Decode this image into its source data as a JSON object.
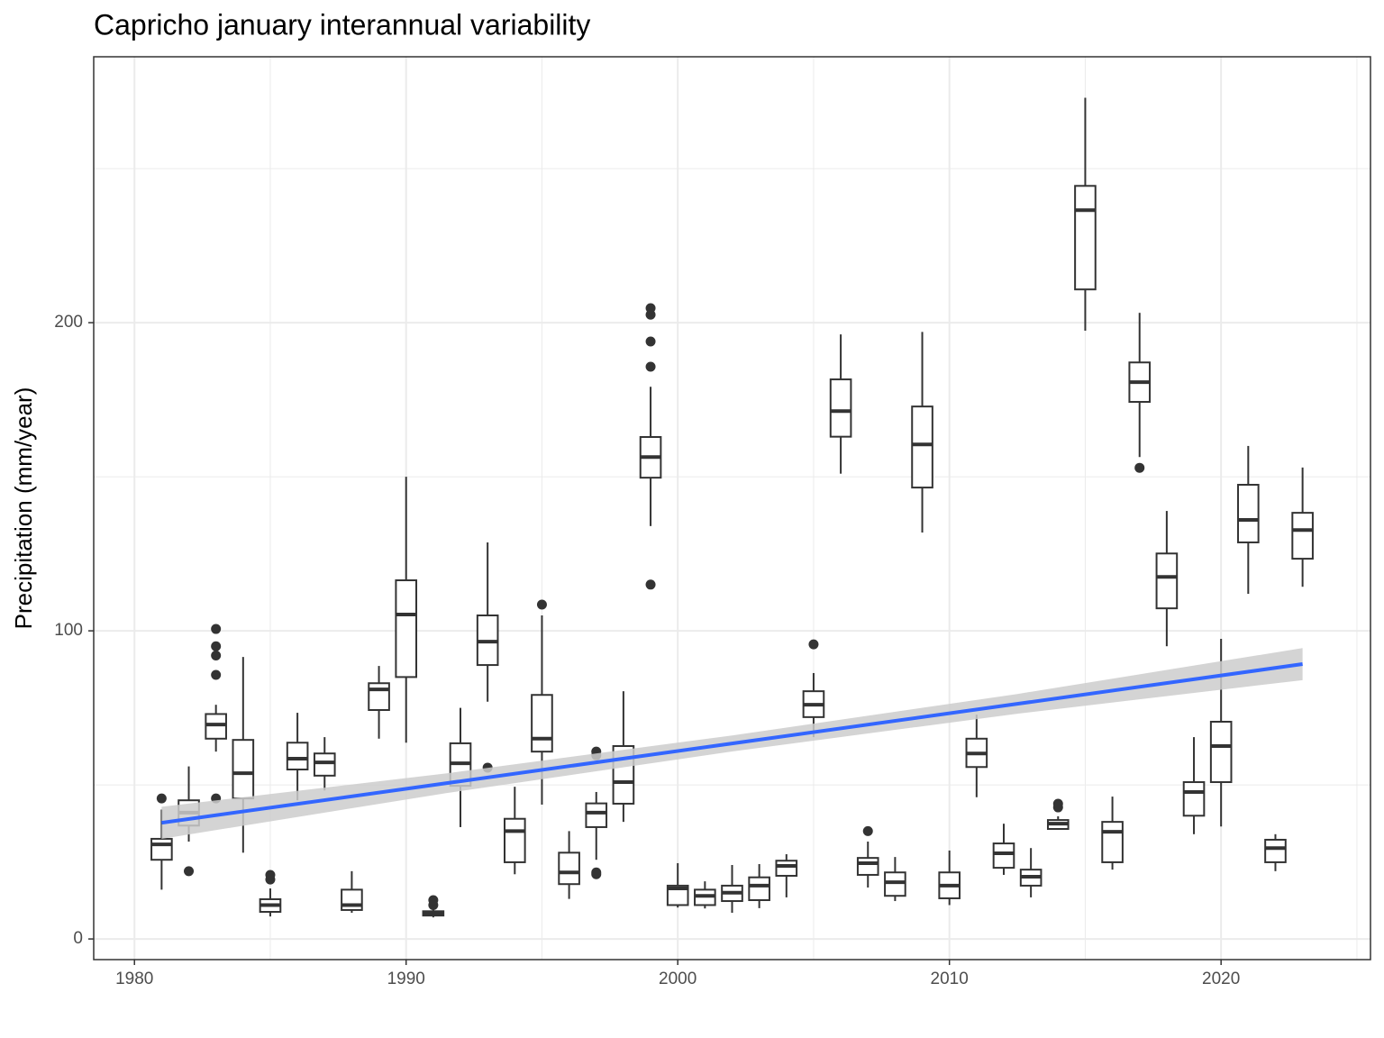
{
  "chart_data": {
    "type": "boxplot",
    "title": "Capricho january interannual variability",
    "y_label": "Precipitation (mm/year)",
    "xlim": [
      1978.5,
      2025.5
    ],
    "xticks": [
      1980,
      1990,
      2000,
      2010,
      2020
    ],
    "minor_xticks": [
      1985,
      1995,
      2005,
      2015,
      2025
    ],
    "ylim": [
      -6.7,
      286.3
    ],
    "yticks": [
      0,
      100,
      200
    ],
    "minor_yticks": [
      50,
      150,
      250
    ],
    "grid": true,
    "box_color": "#333333",
    "box_fill": "#ffffff",
    "boxes": [
      {
        "x": 1981,
        "whisker_low": 16,
        "q1": 25.7,
        "median": 30.7,
        "q3": 32.5,
        "whisker_high": 42,
        "outliers": [
          45.6
        ]
      },
      {
        "x": 1982,
        "whisker_low": 31.6,
        "q1": 36.8,
        "median": 41,
        "q3": 45,
        "whisker_high": 56,
        "outliers": [
          22
        ]
      },
      {
        "x": 1983,
        "whisker_low": 60.8,
        "q1": 65,
        "median": 69.6,
        "q3": 73,
        "whisker_high": 76,
        "outliers": [
          45.6,
          85.7,
          92,
          95,
          100.6
        ]
      },
      {
        "x": 1984,
        "whisker_low": 28,
        "q1": 45.6,
        "median": 53.8,
        "q3": 64.6,
        "whisker_high": 91.5,
        "outliers": []
      },
      {
        "x": 1985,
        "whisker_low": 7.3,
        "q1": 8.8,
        "median": 11,
        "q3": 12.9,
        "whisker_high": 16.4,
        "outliers": [
          19.3,
          20.8
        ]
      },
      {
        "x": 1986,
        "whisker_low": 45,
        "q1": 55,
        "median": 58.5,
        "q3": 63.7,
        "whisker_high": 73.4,
        "outliers": []
      },
      {
        "x": 1987,
        "whisker_low": 48.2,
        "q1": 53,
        "median": 57.3,
        "q3": 60.2,
        "whisker_high": 65.5,
        "outliers": []
      },
      {
        "x": 1988,
        "whisker_low": 8.5,
        "q1": 9.4,
        "median": 11,
        "q3": 16,
        "whisker_high": 22,
        "outliers": []
      },
      {
        "x": 1989,
        "whisker_low": 65,
        "q1": 74.3,
        "median": 81,
        "q3": 83,
        "whisker_high": 88.6,
        "outliers": []
      },
      {
        "x": 1990,
        "whisker_low": 63.7,
        "q1": 85,
        "median": 105.3,
        "q3": 116.4,
        "whisker_high": 150,
        "outliers": []
      },
      {
        "x": 1991,
        "whisker_low": 7,
        "q1": 7.6,
        "median": 8.2,
        "q3": 9,
        "whisker_high": 10,
        "outliers": [
          11,
          12.6
        ]
      },
      {
        "x": 1992,
        "whisker_low": 36.3,
        "q1": 49.7,
        "median": 57,
        "q3": 63.5,
        "whisker_high": 75,
        "outliers": []
      },
      {
        "x": 1993,
        "whisker_low": 77,
        "q1": 88.9,
        "median": 96.5,
        "q3": 105,
        "whisker_high": 128.7,
        "outliers": [
          55.6
        ]
      },
      {
        "x": 1994,
        "whisker_low": 21,
        "q1": 24.9,
        "median": 35,
        "q3": 39,
        "whisker_high": 49.4,
        "outliers": []
      },
      {
        "x": 1995,
        "whisker_low": 43.6,
        "q1": 60.8,
        "median": 65,
        "q3": 79.2,
        "whisker_high": 105,
        "outliers": [
          108.5
        ]
      },
      {
        "x": 1996,
        "whisker_low": 13,
        "q1": 17.8,
        "median": 21.6,
        "q3": 28,
        "whisker_high": 35,
        "outliers": []
      },
      {
        "x": 1997,
        "whisker_low": 25.7,
        "q1": 36.3,
        "median": 41,
        "q3": 44,
        "whisker_high": 47.7,
        "outliers": [
          21,
          21.6,
          59.6,
          60.8
        ]
      },
      {
        "x": 1998,
        "whisker_low": 38,
        "q1": 43.9,
        "median": 50.9,
        "q3": 62.6,
        "whisker_high": 80.4,
        "outliers": []
      },
      {
        "x": 1999,
        "whisker_low": 134,
        "q1": 149.7,
        "median": 156.4,
        "q3": 162.9,
        "whisker_high": 179.2,
        "outliers": [
          115,
          185.7,
          193.9,
          202.6,
          204.7
        ]
      },
      {
        "x": 2000,
        "whisker_low": 10.2,
        "q1": 11,
        "median": 16.4,
        "q3": 17.3,
        "whisker_high": 24.6,
        "outliers": []
      },
      {
        "x": 2001,
        "whisker_low": 9.9,
        "q1": 11,
        "median": 14,
        "q3": 16,
        "whisker_high": 18.7,
        "outliers": []
      },
      {
        "x": 2002,
        "whisker_low": 8.5,
        "q1": 12.3,
        "median": 15,
        "q3": 17.3,
        "whisker_high": 24,
        "outliers": []
      },
      {
        "x": 2003,
        "whisker_low": 10,
        "q1": 12.6,
        "median": 17.3,
        "q3": 20,
        "whisker_high": 24.3,
        "outliers": []
      },
      {
        "x": 2004,
        "whisker_low": 13.5,
        "q1": 20.5,
        "median": 23.7,
        "q3": 25.4,
        "whisker_high": 27.5,
        "outliers": []
      },
      {
        "x": 2005,
        "whisker_low": 65.5,
        "q1": 72,
        "median": 76,
        "q3": 80.4,
        "whisker_high": 86.3,
        "outliers": [
          95.6
        ]
      },
      {
        "x": 2006,
        "whisker_low": 151,
        "q1": 163,
        "median": 171.3,
        "q3": 181.6,
        "whisker_high": 196.2,
        "outliers": []
      },
      {
        "x": 2007,
        "whisker_low": 16.7,
        "q1": 20.8,
        "median": 24.6,
        "q3": 26.3,
        "whisker_high": 31.6,
        "outliers": [
          35
        ]
      },
      {
        "x": 2008,
        "whisker_low": 12.3,
        "q1": 14,
        "median": 18.4,
        "q3": 21.6,
        "whisker_high": 26.6,
        "outliers": []
      },
      {
        "x": 2009,
        "whisker_low": 131.9,
        "q1": 146.5,
        "median": 160.5,
        "q3": 172.8,
        "whisker_high": 197,
        "outliers": []
      },
      {
        "x": 2010,
        "whisker_low": 11,
        "q1": 13.2,
        "median": 17.3,
        "q3": 21.6,
        "whisker_high": 28.7,
        "outliers": []
      },
      {
        "x": 2011,
        "whisker_low": 46,
        "q1": 55.8,
        "median": 60.2,
        "q3": 65,
        "whisker_high": 72.8,
        "outliers": []
      },
      {
        "x": 2012,
        "whisker_low": 20.8,
        "q1": 23.1,
        "median": 27.8,
        "q3": 31,
        "whisker_high": 37.4,
        "outliers": []
      },
      {
        "x": 2013,
        "whisker_low": 13.5,
        "q1": 17.3,
        "median": 20.2,
        "q3": 22.5,
        "whisker_high": 29.5,
        "outliers": []
      },
      {
        "x": 2014,
        "whisker_low": 35.4,
        "q1": 35.7,
        "median": 37.4,
        "q3": 38.6,
        "whisker_high": 39.8,
        "outliers": [
          42.7,
          43.9
        ]
      },
      {
        "x": 2015,
        "whisker_low": 197.4,
        "q1": 210.8,
        "median": 236.5,
        "q3": 244.4,
        "whisker_high": 273,
        "outliers": []
      },
      {
        "x": 2016,
        "whisker_low": 22.5,
        "q1": 24.9,
        "median": 34.8,
        "q3": 38,
        "whisker_high": 46.2,
        "outliers": []
      },
      {
        "x": 2017,
        "whisker_low": 156.4,
        "q1": 174.3,
        "median": 180.7,
        "q3": 187.1,
        "whisker_high": 203.2,
        "outliers": [
          152.9
        ]
      },
      {
        "x": 2018,
        "whisker_low": 95,
        "q1": 107.3,
        "median": 117.5,
        "q3": 125.1,
        "whisker_high": 138.9,
        "outliers": []
      },
      {
        "x": 2019,
        "whisker_low": 34,
        "q1": 40,
        "median": 47.7,
        "q3": 50.9,
        "whisker_high": 65.5,
        "outliers": []
      },
      {
        "x": 2020,
        "whisker_low": 36.5,
        "q1": 50.9,
        "median": 62.6,
        "q3": 70.5,
        "whisker_high": 97.4,
        "outliers": []
      },
      {
        "x": 2021,
        "whisker_low": 112,
        "q1": 128.7,
        "median": 136,
        "q3": 147.4,
        "whisker_high": 160,
        "outliers": []
      },
      {
        "x": 2022,
        "whisker_low": 22,
        "q1": 24.9,
        "median": 29.5,
        "q3": 32.2,
        "whisker_high": 34,
        "outliers": []
      },
      {
        "x": 2023,
        "whisker_low": 114.3,
        "q1": 123.4,
        "median": 132.7,
        "q3": 138.3,
        "whisker_high": 153,
        "outliers": []
      }
    ],
    "trend": {
      "color": "#3366ff",
      "band_color": "#cccccc",
      "x": [
        1981,
        1991.5,
        2002,
        2012.5,
        2023
      ],
      "values": [
        37.7,
        50.57,
        63.45,
        76.3,
        89.2
      ],
      "ci_lower": [
        32.5,
        47.37,
        60.85,
        73.1,
        84
      ],
      "ci_upper": [
        42.9,
        53.77,
        66.05,
        79.5,
        94.4
      ]
    }
  }
}
